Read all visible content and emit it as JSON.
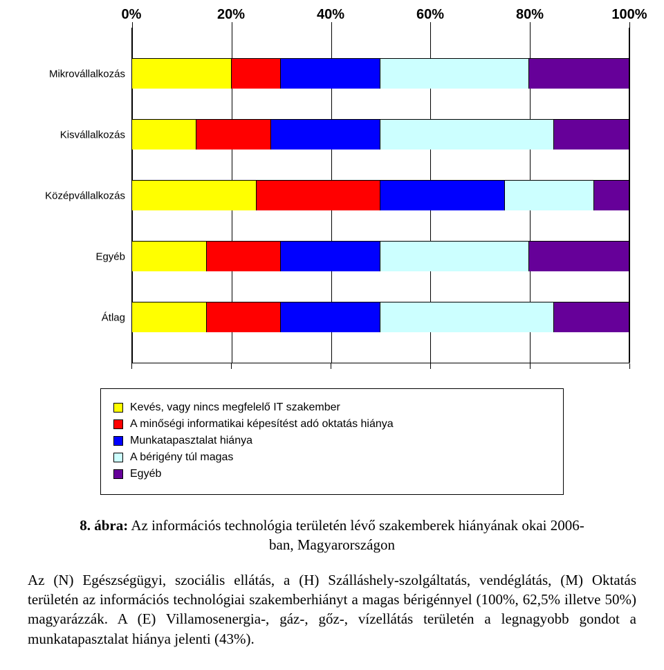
{
  "chart": {
    "type": "stacked-bar-horizontal",
    "axis_ticks": [
      0,
      20,
      40,
      60,
      80,
      100
    ],
    "axis_tick_labels": [
      "0%",
      "20%",
      "40%",
      "60%",
      "80%",
      "100%"
    ],
    "axis_fontsize": 20,
    "cat_fontsize": 15,
    "legend_fontsize": 16,
    "gridline_color": "#000000",
    "background_color": "#ffffff",
    "categories": [
      {
        "label": "Mikrovállalkozás",
        "values": [
          20,
          10,
          20,
          30,
          20
        ]
      },
      {
        "label": "Kisvállalkozás",
        "values": [
          13,
          15,
          22,
          35,
          15
        ]
      },
      {
        "label": "Középvállalkozás",
        "values": [
          25,
          25,
          25,
          18,
          7
        ]
      },
      {
        "label": "Egyéb",
        "values": [
          15,
          15,
          20,
          30,
          20
        ]
      },
      {
        "label": "Átlag",
        "values": [
          15,
          15,
          20,
          35,
          15
        ]
      }
    ],
    "series": [
      {
        "label": "Kevés, vagy nincs megfelelő IT szakember",
        "color": "#ffff00"
      },
      {
        "label": "A minőségi informatikai képesítést adó oktatás hiánya",
        "color": "#ff0000"
      },
      {
        "label": "Munkatapasztalat hiánya",
        "color": "#0000ff"
      },
      {
        "label": "A bérigény túl magas",
        "color": "#ccffff"
      },
      {
        "label": "Egyéb",
        "color": "#660099"
      }
    ]
  },
  "caption": {
    "label": "8. ábra:",
    "text_line1": "Az információs technológia területén lévő szakemberek hiányának okai 2006-",
    "text_line2": "ban, Magyarországon",
    "fontsize": 21
  },
  "paragraph": {
    "text": "Az (N) Egészségügyi, szociális ellátás, a (H) Szálláshely-szolgáltatás, vendéglátás, (M) Oktatás területén az információs technológiai szakemberhiányt a magas bérigénnyel (100%, 62,5% illetve 50%) magyarázzák. A (E) Villamosenergia-, gáz-, gőz-, vízellátás területén a legnagyobb gondot a munkatapasztalat hiánya jelenti (43%).",
    "fontsize": 21
  }
}
